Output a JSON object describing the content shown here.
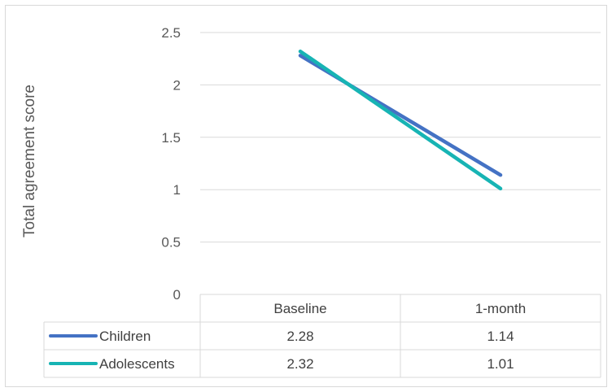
{
  "chart_data": {
    "type": "line",
    "title": "",
    "xlabel": "",
    "ylabel": "Total agreement score",
    "categories": [
      "Baseline",
      "1-month"
    ],
    "series": [
      {
        "name": "Children",
        "values": [
          2.28,
          1.14
        ],
        "color": "#4472C4"
      },
      {
        "name": "Adolescents",
        "values": [
          2.32,
          1.01
        ],
        "color": "#17B4B4"
      }
    ],
    "ylim": [
      0,
      2.5
    ],
    "yticks": [
      "0",
      "0.5",
      "1",
      "1.5",
      "2",
      "2.5"
    ],
    "table_values": [
      [
        "2.28",
        "1.14"
      ],
      [
        "2.32",
        "1.01"
      ]
    ],
    "grid": true,
    "legend": "data table"
  }
}
